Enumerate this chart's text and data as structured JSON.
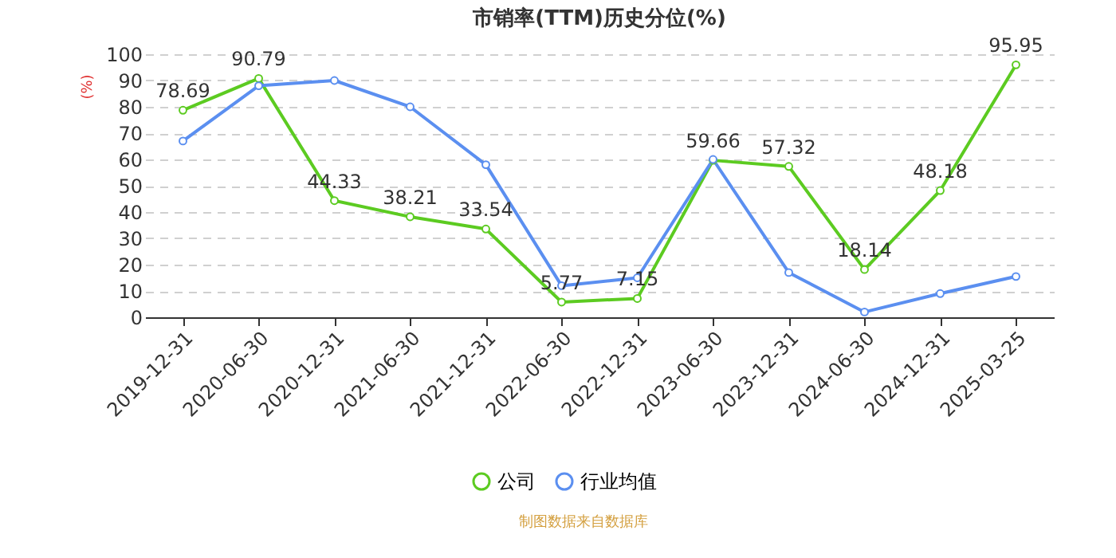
{
  "chart_data": {
    "type": "line",
    "title": "市销率(TTM)历史分位(%)",
    "ylabel": "(%)",
    "categories": [
      "2019-12-31",
      "2020-06-30",
      "2020-12-31",
      "2021-06-30",
      "2021-12-31",
      "2022-06-30",
      "2022-12-31",
      "2023-06-30",
      "2023-12-31",
      "2024-06-30",
      "2024-12-31",
      "2025-03-25"
    ],
    "series": [
      {
        "name": "公司",
        "color": "#5ccb21",
        "values": [
          78.69,
          90.79,
          44.33,
          38.21,
          33.54,
          5.77,
          7.15,
          59.66,
          57.32,
          18.14,
          48.18,
          95.95
        ],
        "value_labels": [
          "78.69",
          "90.79",
          "44.33",
          "38.21",
          "33.54",
          "5.77",
          "7.15",
          "59.66",
          "57.32",
          "18.14",
          "48.18",
          "95.95"
        ]
      },
      {
        "name": "行业均值",
        "color": "#5b8ff0",
        "values": [
          67,
          88,
          90,
          80,
          58,
          12,
          15,
          60,
          17,
          2,
          9,
          15.5
        ]
      }
    ],
    "ylim": [
      0,
      100
    ],
    "yticks": [
      0,
      10,
      20,
      30,
      40,
      50,
      60,
      70,
      80,
      90,
      100
    ],
    "grid": "y",
    "legend": "bottom",
    "marker": "circle",
    "line_style": "solid",
    "annotations": [
      "制图数据来自数据库"
    ]
  }
}
